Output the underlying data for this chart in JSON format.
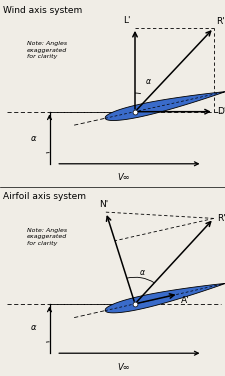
{
  "title1": "Wind axis system",
  "title2": "Airfoil axis system",
  "note_text": "Note: Angles\nexaggerated\nfor clarity",
  "alpha_label": "α",
  "vinf_label": "V∞",
  "airfoil_color": "#3a6bc9",
  "airfoil_edge": "#000000",
  "bg_color": "#f0ede6",
  "text_color": "#000000",
  "alpha_deg": 15,
  "figsize": [
    2.25,
    3.76
  ],
  "dpi": 100
}
